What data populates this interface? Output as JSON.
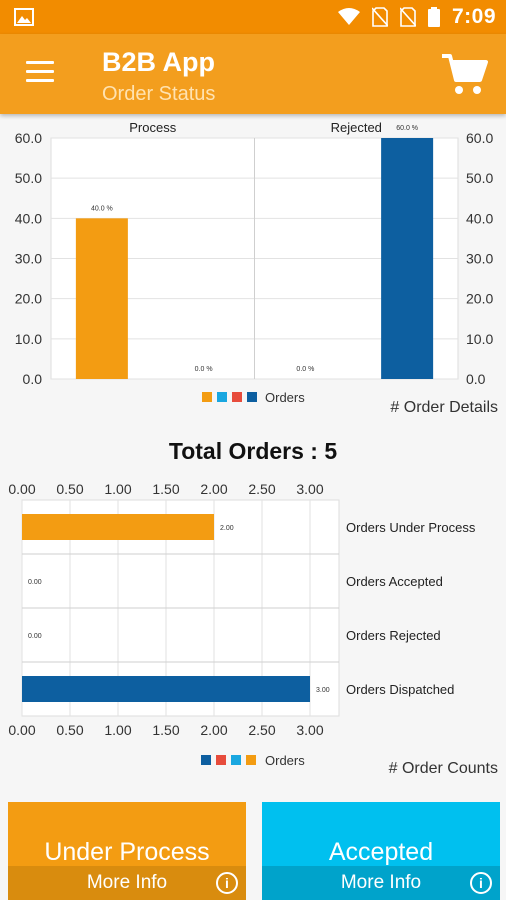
{
  "status_bar": {
    "time": "7:09",
    "icons": [
      "image-icon",
      "wifi-icon",
      "no-sim-icon",
      "no-sim-icon",
      "battery-icon"
    ]
  },
  "app_bar": {
    "title": "B2B App",
    "subtitle": "Order Status",
    "menu_icon": "hamburger-menu-icon",
    "cart_icon": "shopping-cart-icon"
  },
  "colors": {
    "status_bar": "#f28c00",
    "app_bar": "#f39e1e",
    "orange": "#f39c12",
    "blue": "#0d5fa0",
    "cyan": "#1aa7e0",
    "red": "#e74c3c",
    "card_accepted": "#00c0ef"
  },
  "total_orders": "Total Orders : 5",
  "chart_data": [
    {
      "type": "bar",
      "categories": [
        "Process",
        "Rejected"
      ],
      "slot_values": [
        40.0,
        0.0,
        0.0,
        60.0
      ],
      "value_labels": [
        "40.0 %",
        "0.0 %",
        "0.0 %",
        "60.0 %"
      ],
      "slot_colors": [
        "#f39c12",
        "#1aa7e0",
        "#e74c3c",
        "#0d5fa0"
      ],
      "y_ticks": [
        "0.0",
        "10.0",
        "20.0",
        "30.0",
        "40.0",
        "50.0",
        "60.0"
      ],
      "ylim": [
        0,
        60
      ],
      "legend_label": "Orders",
      "legend_colors": [
        "#f39c12",
        "#1aa7e0",
        "#e74c3c",
        "#0d5fa0"
      ],
      "caption": "# Order Details",
      "grid": true,
      "legend_position": "bottom"
    },
    {
      "type": "bar",
      "orientation": "horizontal",
      "categories": [
        "Orders Under Process",
        "Orders Accepted",
        "Orders Rejected",
        "Orders Dispatched"
      ],
      "values": [
        2.0,
        0.0,
        0.0,
        3.0
      ],
      "value_labels": [
        "2.00",
        "0.00",
        "0.00",
        "3.00"
      ],
      "bar_colors": [
        "#f39c12",
        "#1aa7e0",
        "#e74c3c",
        "#0d5fa0"
      ],
      "x_ticks": [
        "0.00",
        "0.50",
        "1.00",
        "1.50",
        "2.00",
        "2.50",
        "3.00"
      ],
      "xlim": [
        0,
        3
      ],
      "legend_label": "Orders",
      "legend_colors": [
        "#0d5fa0",
        "#e74c3c",
        "#1aa7e0",
        "#f39c12"
      ],
      "caption": "# Order Counts",
      "grid": true,
      "legend_position": "bottom"
    }
  ],
  "cards": [
    {
      "label": "Under Process",
      "more": "More Info",
      "color": "#f39c12",
      "foot": "#d98c0e"
    },
    {
      "label": "Accepted",
      "more": "More Info",
      "color": "#00c0ef",
      "foot": "#00a3cb"
    }
  ]
}
